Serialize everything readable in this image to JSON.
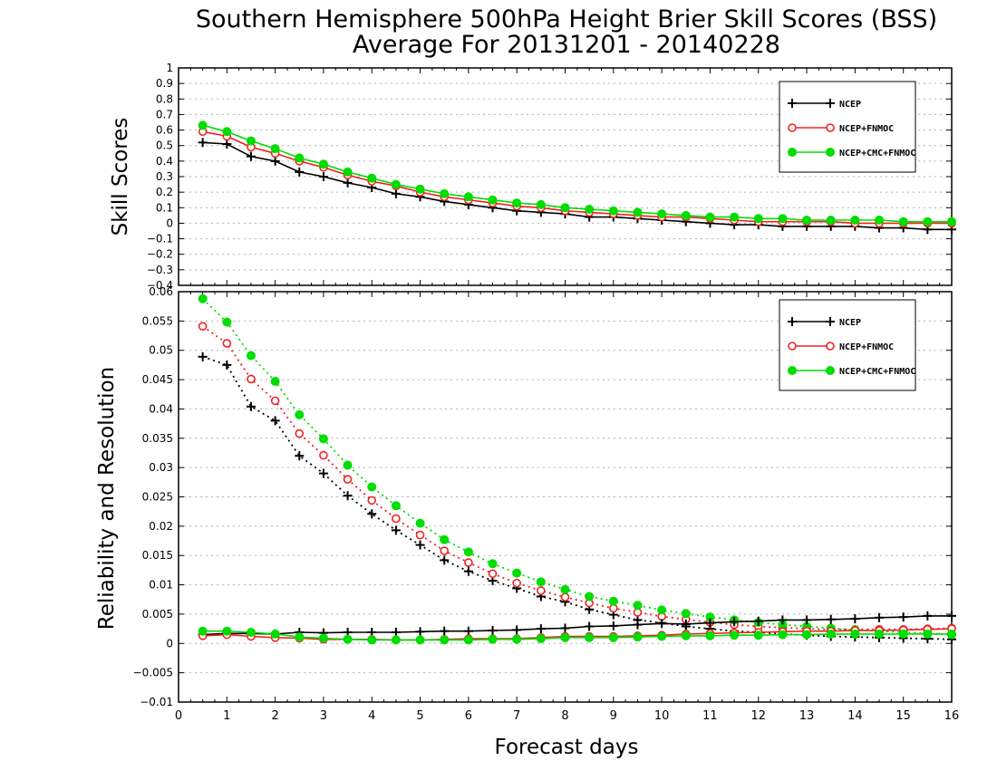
{
  "title_line1": "Southern Hemisphere 500hPa Height Brier Skill Scores (BSS)",
  "title_line2": "Average For 20131201 - 20140228",
  "xlabel": "Forecast days",
  "colors": {
    "NCEP": "#000000",
    "NCEP+FNMOC": "#ee2222",
    "NCEP+CMC+FNMOC": "#00dd00"
  },
  "chart_data": [
    {
      "type": "line",
      "panel": "top",
      "ylabel": "Skill Scores",
      "xlim": [
        0,
        16
      ],
      "ylim": [
        -0.4,
        1
      ],
      "x_ticks": [
        "0",
        "1",
        "2",
        "3",
        "4",
        "5",
        "6",
        "7",
        "8",
        "9",
        "10",
        "11",
        "12",
        "13",
        "14",
        "15",
        "16"
      ],
      "y_ticks": [
        "−0.4",
        "−0.3",
        "−0.2",
        "−0.1",
        "0",
        "0.1",
        "0.2",
        "0.3",
        "0.4",
        "0.5",
        "0.6",
        "0.7",
        "0.8",
        "0.9",
        "1"
      ],
      "y_tick_values": [
        -0.4,
        -0.3,
        -0.2,
        -0.1,
        0,
        0.1,
        0.2,
        0.3,
        0.4,
        0.5,
        0.6,
        0.7,
        0.8,
        0.9,
        1
      ],
      "grid": true,
      "legend_position": "top-right",
      "x": [
        0.5,
        1,
        1.5,
        2,
        2.5,
        3,
        3.5,
        4,
        4.5,
        5,
        5.5,
        6,
        6.5,
        7,
        7.5,
        8,
        8.5,
        9,
        9.5,
        10,
        10.5,
        11,
        11.5,
        12,
        12.5,
        13,
        13.5,
        14,
        14.5,
        15,
        15.5,
        16
      ],
      "series": [
        {
          "name": "NCEP",
          "marker": "plus",
          "style": "solid",
          "values": [
            0.52,
            0.51,
            0.43,
            0.4,
            0.33,
            0.3,
            0.26,
            0.23,
            0.19,
            0.17,
            0.14,
            0.12,
            0.1,
            0.08,
            0.07,
            0.06,
            0.04,
            0.04,
            0.03,
            0.02,
            0.01,
            0.0,
            -0.01,
            -0.01,
            -0.02,
            -0.02,
            -0.02,
            -0.02,
            -0.03,
            -0.03,
            -0.04,
            -0.04
          ]
        },
        {
          "name": "NCEP+FNMOC",
          "marker": "circle-open",
          "style": "solid",
          "values": [
            0.59,
            0.56,
            0.49,
            0.45,
            0.4,
            0.36,
            0.31,
            0.27,
            0.24,
            0.2,
            0.17,
            0.15,
            0.13,
            0.11,
            0.1,
            0.08,
            0.07,
            0.06,
            0.05,
            0.04,
            0.04,
            0.03,
            0.02,
            0.01,
            0.01,
            0.01,
            0.01,
            0.0,
            0.0,
            0.0,
            0.0,
            0.0
          ]
        },
        {
          "name": "NCEP+CMC+FNMOC",
          "marker": "circle-filled",
          "style": "solid",
          "values": [
            0.63,
            0.59,
            0.53,
            0.48,
            0.42,
            0.38,
            0.33,
            0.29,
            0.25,
            0.22,
            0.19,
            0.17,
            0.15,
            0.13,
            0.12,
            0.1,
            0.09,
            0.08,
            0.07,
            0.06,
            0.05,
            0.04,
            0.04,
            0.03,
            0.03,
            0.02,
            0.02,
            0.02,
            0.02,
            0.01,
            0.01,
            0.01
          ]
        }
      ]
    },
    {
      "type": "line",
      "panel": "bottom",
      "ylabel": "Reliability and Resolution",
      "xlim": [
        0,
        16
      ],
      "ylim": [
        -0.01,
        0.06
      ],
      "x_ticks": [
        "0",
        "1",
        "2",
        "3",
        "4",
        "5",
        "6",
        "7",
        "8",
        "9",
        "10",
        "11",
        "12",
        "13",
        "14",
        "15",
        "16"
      ],
      "y_ticks": [
        "−0.01",
        "−0.005",
        "0",
        "0.005",
        "0.01",
        "0.015",
        "0.02",
        "0.025",
        "0.03",
        "0.035",
        "0.04",
        "0.045",
        "0.05",
        "0.055",
        "0.06"
      ],
      "y_tick_values": [
        -0.01,
        -0.005,
        0,
        0.005,
        0.01,
        0.015,
        0.02,
        0.025,
        0.03,
        0.035,
        0.04,
        0.045,
        0.05,
        0.055,
        0.06
      ],
      "grid": true,
      "legend_position": "top-right",
      "x": [
        0.5,
        1,
        1.5,
        2,
        2.5,
        3,
        3.5,
        4,
        4.5,
        5,
        5.5,
        6,
        6.5,
        7,
        7.5,
        8,
        8.5,
        9,
        9.5,
        10,
        10.5,
        11,
        11.5,
        12,
        12.5,
        13,
        13.5,
        14,
        14.5,
        15,
        15.5,
        16
      ],
      "series": [
        {
          "name": "NCEP",
          "component": "resolution",
          "marker": "plus",
          "style": "dotted",
          "values": [
            0.0489,
            0.0475,
            0.0404,
            0.038,
            0.032,
            0.029,
            0.0252,
            0.0221,
            0.0193,
            0.0168,
            0.0142,
            0.0123,
            0.0107,
            0.0094,
            0.008,
            0.0071,
            0.0058,
            0.0049,
            0.004,
            0.0035,
            0.0029,
            0.0025,
            0.0021,
            0.0019,
            0.0016,
            0.0014,
            0.0012,
            0.0011,
            0.001,
            0.0009,
            0.0008,
            0.0007
          ]
        },
        {
          "name": "NCEP+FNMOC",
          "component": "resolution",
          "marker": "circle-open",
          "style": "dotted",
          "values": [
            0.0541,
            0.0512,
            0.0451,
            0.0414,
            0.0358,
            0.0321,
            0.028,
            0.0244,
            0.0213,
            0.0185,
            0.0158,
            0.0138,
            0.0119,
            0.0103,
            0.009,
            0.0079,
            0.0069,
            0.006,
            0.0053,
            0.0046,
            0.0041,
            0.0036,
            0.0032,
            0.0029,
            0.0027,
            0.0025,
            0.0024,
            0.0024,
            0.0024,
            0.0024,
            0.0025,
            0.0026
          ]
        },
        {
          "name": "NCEP+CMC+FNMOC",
          "component": "resolution",
          "marker": "circle-filled",
          "style": "dotted",
          "values": [
            0.0588,
            0.0548,
            0.0491,
            0.0447,
            0.039,
            0.0349,
            0.0304,
            0.0267,
            0.0235,
            0.0205,
            0.0177,
            0.0156,
            0.0136,
            0.012,
            0.0105,
            0.0092,
            0.008,
            0.0072,
            0.0065,
            0.0057,
            0.0051,
            0.0045,
            0.004,
            0.0036,
            0.0032,
            0.0029,
            0.0026,
            0.0023,
            0.0021,
            0.0019,
            0.0017,
            0.0015
          ]
        },
        {
          "name": "NCEP",
          "component": "reliability",
          "marker": "plus",
          "style": "solid",
          "values": [
            0.0015,
            0.0017,
            0.0017,
            0.0016,
            0.0019,
            0.0018,
            0.0019,
            0.0019,
            0.0019,
            0.002,
            0.0021,
            0.0021,
            0.0022,
            0.0023,
            0.0025,
            0.0026,
            0.0029,
            0.003,
            0.0032,
            0.0034,
            0.0033,
            0.0035,
            0.0037,
            0.0038,
            0.004,
            0.004,
            0.0041,
            0.0042,
            0.0044,
            0.0045,
            0.0047,
            0.0047
          ]
        },
        {
          "name": "NCEP+FNMOC",
          "component": "reliability",
          "marker": "circle-open",
          "style": "solid",
          "values": [
            0.0013,
            0.0015,
            0.0012,
            0.001,
            0.0009,
            0.0007,
            0.0007,
            0.0007,
            0.0006,
            0.0006,
            0.0007,
            0.0008,
            0.0008,
            0.0008,
            0.001,
            0.0012,
            0.0012,
            0.0012,
            0.0013,
            0.0014,
            0.0016,
            0.0017,
            0.0018,
            0.0019,
            0.002,
            0.0021,
            0.0021,
            0.0022,
            0.0022,
            0.0023,
            0.0024,
            0.0025
          ]
        },
        {
          "name": "NCEP+CMC+FNMOC",
          "component": "reliability",
          "marker": "circle-filled",
          "style": "solid",
          "values": [
            0.0021,
            0.0021,
            0.0019,
            0.0016,
            0.0011,
            0.0009,
            0.0007,
            0.0006,
            0.0006,
            0.0006,
            0.0006,
            0.0006,
            0.0007,
            0.0007,
            0.0008,
            0.001,
            0.001,
            0.001,
            0.0011,
            0.0012,
            0.0013,
            0.0013,
            0.0014,
            0.0014,
            0.0015,
            0.0015,
            0.0016,
            0.0016,
            0.0016,
            0.0016,
            0.0016,
            0.0016
          ]
        }
      ]
    }
  ]
}
